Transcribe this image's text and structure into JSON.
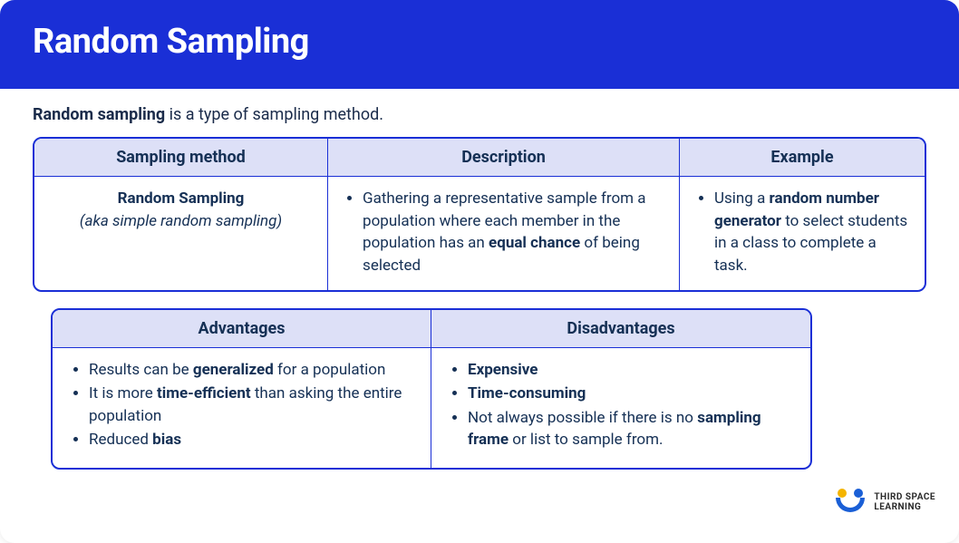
{
  "colors": {
    "header_bg": "#1a2fd6",
    "header_text": "#ffffff",
    "table_border": "#1a2fd6",
    "th_bg": "#dde0f7",
    "text": "#153055",
    "card_bg": "#ffffff"
  },
  "header": {
    "title": "Random Sampling"
  },
  "intro": {
    "bold": "Random sampling",
    "rest": " is a type of sampling method."
  },
  "table1": {
    "headers": [
      "Sampling method",
      "Description",
      "Example"
    ],
    "row": {
      "method_name": "Random Sampling",
      "method_aka": "(aka simple random sampling)",
      "description_html": "Gathering a representative sample from a population where each member in the population has an <strong>equal chance</strong> of being selected",
      "example_html": "Using a <strong>random number generator</strong> to select students in a class to complete a task."
    }
  },
  "table2": {
    "headers": [
      "Advantages",
      "Disadvantages"
    ],
    "advantages": [
      "Results can be <strong>generalized</strong> for a population",
      "It is more <strong>time-efficient</strong> than asking the entire population",
      "Reduced <strong>bias</strong>"
    ],
    "disadvantages": [
      "<strong>Expensive</strong>",
      "<strong>Time-consuming</strong>",
      "Not always possible if there is no <strong>sampling frame</strong> or list to sample from."
    ]
  },
  "logo": {
    "line1": "THIRD SPACE",
    "line2": "LEARNING"
  }
}
